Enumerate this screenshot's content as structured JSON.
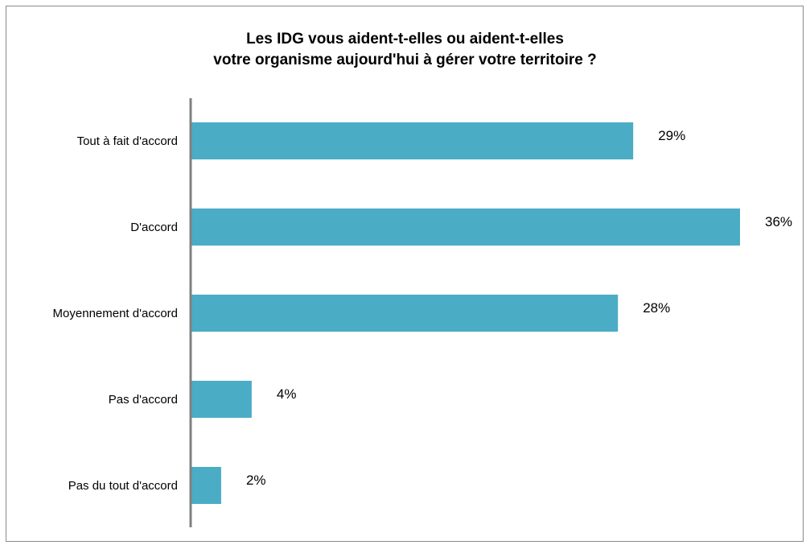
{
  "chart_data": {
    "type": "bar",
    "orientation": "horizontal",
    "title_lines": [
      "Les IDG vous aident-t-elles ou aident-t-elles",
      "votre organisme  aujourd'hui  à gérer votre territoire  ?"
    ],
    "categories": [
      "Tout à fait d'accord",
      "D'accord",
      "Moyennement d'accord",
      "Pas d'accord",
      "Pas du tout d'accord"
    ],
    "values": [
      29,
      36,
      28,
      4,
      2
    ],
    "value_labels": [
      "29%",
      "36%",
      "28%",
      "4%",
      "2%"
    ],
    "unit": "%",
    "xlim": [
      0,
      36
    ],
    "grid": false,
    "legend": "none",
    "colors": {
      "bar": "#4BACC6",
      "axis": "#808080",
      "frame": "#8A8A8A",
      "text": "#000000"
    }
  }
}
